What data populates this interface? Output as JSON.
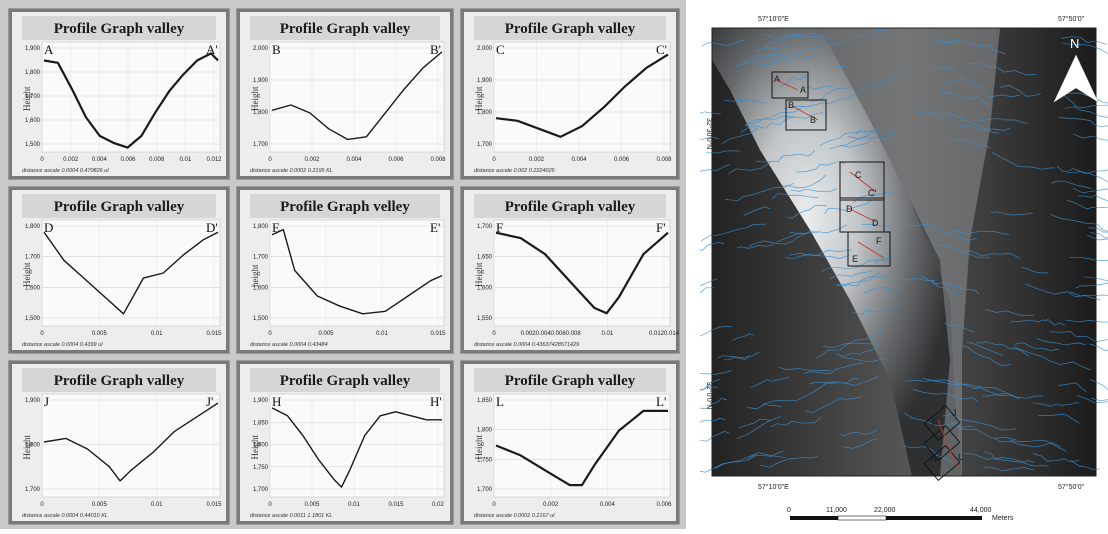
{
  "panels": [
    {
      "title": "Profile Graph valley",
      "start": "A",
      "end": "A'",
      "ylabel": "Height",
      "yticks": [
        "1,900",
        "1,800",
        "1,700",
        "1,600",
        "1,500"
      ],
      "xticks": [
        "0",
        "0.002",
        "0.004",
        "0.006",
        "0.008",
        "0.01",
        "0.012"
      ],
      "distance": "distance ascale 0.0004 0.470826 ul"
    },
    {
      "title": "Profile Graph valley",
      "start": "B",
      "end": "B'",
      "ylabel": "Height",
      "yticks": [
        "2,000",
        "1,900",
        "1,800",
        "1,700"
      ],
      "xticks": [
        "0",
        "0.002",
        "0.004",
        "0.006",
        "0.008"
      ],
      "distance": "distance ascale 0.0002 0.2195 KL"
    },
    {
      "title": "Profile Graph valley",
      "start": "C",
      "end": "C'",
      "ylabel": "Height",
      "yticks": [
        "2,000",
        "1,900",
        "1,800",
        "1,700"
      ],
      "xticks": [
        "0",
        "0.002",
        "0.004",
        "0.006",
        "0.008"
      ],
      "distance": "distance ascale 0.002 0.2224025"
    },
    {
      "title": "Profile Graph valley",
      "start": "D",
      "end": "D'",
      "ylabel": "Height",
      "yticks": [
        "1,800",
        "1,700",
        "1,600",
        "1,500"
      ],
      "xticks": [
        "0",
        "0.005",
        "0.01",
        "0.015"
      ],
      "distance": "distance ascale 0.0004 0.4399 ul"
    },
    {
      "title": "Profile Graph velley",
      "start": "E",
      "end": "E'",
      "ylabel": "height",
      "yticks": [
        "1,800",
        "1,700",
        "1,600",
        "1,500"
      ],
      "xticks": [
        "0",
        "0.005",
        "0.01",
        "0.015"
      ],
      "distance": "distance ascale 0.0004 0.43484"
    },
    {
      "title": "Profile Graph valley",
      "start": "F",
      "end": "F'",
      "ylabel": "Height",
      "yticks": [
        "1,700",
        "1,650",
        "1,600",
        "1,550"
      ],
      "xticks": [
        "0",
        "0.0020.0040.0060.008",
        "0.01",
        "0.0120.014"
      ],
      "distance": "distance ascale 0.0004 0.43637428571429"
    },
    {
      "title": "Profile Graph valley",
      "start": "J",
      "end": "J'",
      "ylabel": "Height",
      "yticks": [
        "1,900",
        "1,800",
        "1,700"
      ],
      "xticks": [
        "0",
        "0.005",
        "0.01",
        "0.015"
      ],
      "distance": "distance ascale 0.0004 0.44010 KL"
    },
    {
      "title": "Profile Graph valley",
      "start": "H",
      "end": "H'",
      "ylabel": "Height",
      "yticks": [
        "1,900",
        "1,850",
        "1,800",
        "1,750",
        "1,700"
      ],
      "xticks": [
        "0",
        "0.005",
        "0.01",
        "0.015",
        "0.02"
      ],
      "distance": "distance ascale 0.0011 1.1801 KL"
    },
    {
      "title": "Profile Graph valley",
      "start": "L",
      "end": "L'",
      "ylabel": "Height",
      "yticks": [
        "1,850",
        "1,800",
        "1,750",
        "1,700"
      ],
      "xticks": [
        "0",
        "0.002",
        "0.004",
        "0.006"
      ],
      "distance": "distance ascale 0.0002 0.2167 ul"
    }
  ],
  "chart_data": [
    {
      "type": "line",
      "title": "Profile Graph valley",
      "ylabel": "Height",
      "ylim": [
        1500,
        1950
      ],
      "x": [
        0,
        0.001,
        0.002,
        0.003,
        0.004,
        0.005,
        0.006,
        0.007,
        0.008,
        0.009,
        0.01,
        0.011,
        0.012,
        0.0125
      ],
      "y": [
        1880,
        1870,
        1760,
        1640,
        1560,
        1530,
        1510,
        1560,
        1660,
        1750,
        1820,
        1880,
        1910,
        1880
      ]
    },
    {
      "type": "line",
      "title": "Profile Graph valley",
      "ylabel": "Height",
      "ylim": [
        1650,
        2050
      ],
      "x": [
        0,
        0.001,
        0.002,
        0.003,
        0.004,
        0.005,
        0.006,
        0.007,
        0.008,
        0.009
      ],
      "y": [
        1800,
        1820,
        1790,
        1730,
        1690,
        1700,
        1790,
        1880,
        1960,
        2020
      ]
    },
    {
      "type": "line",
      "title": "Profile Graph valley",
      "ylabel": "Height",
      "ylim": [
        1650,
        2050
      ],
      "x": [
        0,
        0.001,
        0.002,
        0.003,
        0.004,
        0.005,
        0.006,
        0.007,
        0.008
      ],
      "y": [
        1770,
        1760,
        1730,
        1700,
        1740,
        1810,
        1890,
        1960,
        2010
      ]
    },
    {
      "type": "line",
      "title": "Profile Graph valley",
      "ylabel": "Height",
      "ylim": [
        1450,
        1850
      ],
      "x": [
        0,
        0.002,
        0.004,
        0.006,
        0.008,
        0.01,
        0.012,
        0.014,
        0.016,
        0.0175
      ],
      "y": [
        1810,
        1700,
        1630,
        1560,
        1490,
        1630,
        1650,
        1720,
        1780,
        1810
      ]
    },
    {
      "type": "line",
      "title": "Profile Graph velley",
      "ylabel": "height",
      "ylim": [
        1450,
        1850
      ],
      "x": [
        0,
        0.001,
        0.002,
        0.004,
        0.006,
        0.008,
        0.01,
        0.012,
        0.014,
        0.015
      ],
      "y": [
        1800,
        1820,
        1660,
        1560,
        1520,
        1490,
        1500,
        1560,
        1620,
        1640
      ]
    },
    {
      "type": "line",
      "title": "Profile Graph valley",
      "ylabel": "Height",
      "ylim": [
        1530,
        1720
      ],
      "x": [
        0,
        0.002,
        0.004,
        0.006,
        0.008,
        0.009,
        0.01,
        0.012,
        0.014
      ],
      "y": [
        1700,
        1690,
        1660,
        1610,
        1560,
        1550,
        1580,
        1660,
        1700
      ]
    },
    {
      "type": "line",
      "title": "Profile Graph valley",
      "ylabel": "Height",
      "ylim": [
        1680,
        1960
      ],
      "x": [
        0,
        0.002,
        0.004,
        0.006,
        0.007,
        0.008,
        0.01,
        0.012,
        0.014,
        0.016
      ],
      "y": [
        1830,
        1840,
        1810,
        1760,
        1720,
        1750,
        1800,
        1860,
        1900,
        1940
      ]
    },
    {
      "type": "line",
      "title": "Profile Graph valley",
      "ylabel": "Height",
      "ylim": [
        1680,
        1930
      ],
      "x": [
        0,
        0.002,
        0.004,
        0.006,
        0.008,
        0.009,
        0.01,
        0.012,
        0.014,
        0.016,
        0.018,
        0.02,
        0.022
      ],
      "y": [
        1900,
        1880,
        1830,
        1770,
        1720,
        1700,
        1740,
        1830,
        1880,
        1890,
        1880,
        1870,
        1870
      ]
    },
    {
      "type": "line",
      "title": "Profile Graph valley",
      "ylabel": "Height",
      "ylim": [
        1680,
        1880
      ],
      "x": [
        0,
        0.001,
        0.002,
        0.003,
        0.0035,
        0.004,
        0.005,
        0.006,
        0.007
      ],
      "y": [
        1780,
        1760,
        1730,
        1700,
        1700,
        1740,
        1810,
        1850,
        1850
      ]
    }
  ],
  "map": {
    "coord_top_left": "57°10'0\"E",
    "coord_top_right": "57°50'0\"",
    "coord_bottom_left": "57°10'0\"E",
    "coord_bottom_right": "57°50'0\"",
    "lat_top": "32°30'0\"N",
    "lat_bottom": "32°0'0\"N",
    "north": "N",
    "scale_ticks": [
      "0",
      "11,000",
      "22,000",
      "44,000"
    ],
    "scale_unit": "Meters",
    "box_labels": [
      {
        "text": "A",
        "key": "a1"
      },
      {
        "text": "A",
        "key": "a2"
      },
      {
        "text": "B",
        "key": "b1"
      },
      {
        "text": "B",
        "key": "b2"
      },
      {
        "text": "C",
        "key": "c1"
      },
      {
        "text": "C'",
        "key": "c2"
      },
      {
        "text": "D",
        "key": "d1"
      },
      {
        "text": "D",
        "key": "d2"
      },
      {
        "text": "F",
        "key": "f1"
      },
      {
        "text": "E",
        "key": "e1"
      },
      {
        "text": "F",
        "key": "f2"
      },
      {
        "text": "J",
        "key": "j1"
      },
      {
        "text": "H",
        "key": "h1"
      },
      {
        "text": "L",
        "key": "l1"
      }
    ]
  }
}
